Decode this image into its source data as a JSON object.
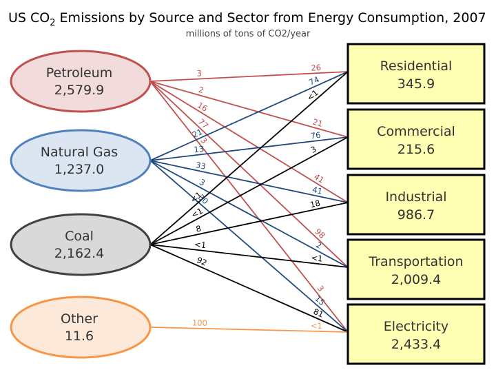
{
  "title": {
    "main": "US CO",
    "sub": "2",
    "rest": " Emissions by Source and Sector from Energy Consumption, 2007"
  },
  "subtitle": "millions of tons of CO2/year",
  "colors": {
    "petroleum": "#c0504d",
    "natural_gas": "#1f497d",
    "coal": "#000000",
    "other": "#f79646"
  },
  "sources": [
    {
      "id": "petroleum",
      "name": "Petroleum",
      "value": "2,579.9",
      "fill": "#f2dcdb",
      "stroke": "#c0504d"
    },
    {
      "id": "natural_gas",
      "name": "Natural Gas",
      "value": "1,237.0",
      "fill": "#dce6f2",
      "stroke": "#4f81bd"
    },
    {
      "id": "coal",
      "name": "Coal",
      "value": "2,162.4",
      "fill": "#d9d9d9",
      "stroke": "#404040"
    },
    {
      "id": "other",
      "name": "Other",
      "value": "11.6",
      "fill": "#fde9d9",
      "stroke": "#f79646"
    }
  ],
  "sectors": [
    {
      "id": "residential",
      "name": "Residential",
      "value": "345.9"
    },
    {
      "id": "commercial",
      "name": "Commercial",
      "value": "215.6"
    },
    {
      "id": "industrial",
      "name": "Industrial",
      "value": "986.7"
    },
    {
      "id": "transportation",
      "name": "Transportation",
      "value": "2,009.4"
    },
    {
      "id": "electricity",
      "name": "Electricity",
      "value": "2,433.4"
    }
  ],
  "flows": [
    {
      "from": "petroleum",
      "to": "residential",
      "labels": [
        "3",
        "26"
      ]
    },
    {
      "from": "petroleum",
      "to": "commercial",
      "labels": [
        "2",
        "21"
      ]
    },
    {
      "from": "petroleum",
      "to": "industrial",
      "labels": [
        "16",
        "41"
      ]
    },
    {
      "from": "petroleum",
      "to": "transportation",
      "labels": [
        "77",
        "98"
      ]
    },
    {
      "from": "petroleum",
      "to": "electricity",
      "labels": [
        "3",
        "3"
      ]
    },
    {
      "from": "natural_gas",
      "to": "residential",
      "labels": [
        "21",
        "74"
      ]
    },
    {
      "from": "natural_gas",
      "to": "commercial",
      "labels": [
        "13",
        "76"
      ]
    },
    {
      "from": "natural_gas",
      "to": "industrial",
      "labels": [
        "33",
        "41"
      ]
    },
    {
      "from": "natural_gas",
      "to": "transportation",
      "labels": [
        "3",
        "2"
      ]
    },
    {
      "from": "natural_gas",
      "to": "electricity",
      "labels": [
        "30",
        "15"
      ]
    },
    {
      "from": "coal",
      "to": "residential",
      "labels": [
        "<1",
        "<1"
      ]
    },
    {
      "from": "coal",
      "to": "commercial",
      "labels": [
        "<1",
        "3"
      ]
    },
    {
      "from": "coal",
      "to": "industrial",
      "labels": [
        "8",
        "18"
      ]
    },
    {
      "from": "coal",
      "to": "transportation",
      "labels": [
        "<1",
        "<1"
      ]
    },
    {
      "from": "coal",
      "to": "electricity",
      "labels": [
        "92",
        "81"
      ]
    },
    {
      "from": "other",
      "to": "electricity",
      "labels": [
        "100",
        "<1"
      ]
    }
  ]
}
